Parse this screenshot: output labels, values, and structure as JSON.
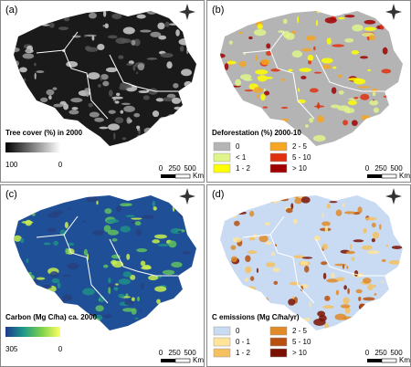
{
  "panels": [
    {
      "label": "(a)",
      "title": "Tree cover (%) in 2000",
      "base": "#1a1a1a",
      "patches": [
        "#555555",
        "#9a9a9a",
        "#d0d0d0"
      ],
      "legend": {
        "start": 100,
        "end": 0,
        "colors": [
          "#000000",
          "#ffffff"
        ]
      },
      "scale": {
        "ticks": [
          0,
          250,
          500
        ],
        "unit": "Km"
      }
    },
    {
      "label": "(b)",
      "title": "Deforestation (%) 2000-10",
      "base": "#b4b4b4",
      "patches": [
        "#ffff00",
        "#f5a623",
        "#e03010",
        "#a00000",
        "#dff58a"
      ],
      "classes": [
        {
          "label": "0",
          "color": "#b4b4b4"
        },
        {
          "label": "< 1",
          "color": "#dff58a"
        },
        {
          "label": "1 - 2",
          "color": "#ffff00"
        },
        {
          "label": "2 - 5",
          "color": "#f5a623"
        },
        {
          "label": "5 - 10",
          "color": "#e03010"
        },
        {
          "label": "> 10",
          "color": "#a00000"
        }
      ],
      "scale": {
        "ticks": [
          0,
          250,
          500
        ],
        "unit": "Km"
      }
    },
    {
      "label": "(c)",
      "title": "Carbon (Mg C/ha) ca. 2000",
      "base": "#1f4f96",
      "patches": [
        "#1f8f8a",
        "#5fc060",
        "#c8ef50",
        "#27407f"
      ],
      "legend": {
        "start": 305,
        "end": 0,
        "colors": [
          "#1d3a8c",
          "#1f9a88",
          "#7fd24a",
          "#ffff66"
        ]
      },
      "scale": {
        "ticks": [
          0,
          250,
          500
        ],
        "unit": "Km"
      }
    },
    {
      "label": "(d)",
      "title": "C emissions (Mg C/ha/yr)",
      "base": "#c9dbf2",
      "patches": [
        "#ffe49a",
        "#f5c060",
        "#e08a28",
        "#b8500f",
        "#7a1000"
      ],
      "classes": [
        {
          "label": "0",
          "color": "#c9dbf2"
        },
        {
          "label": "0 - 1",
          "color": "#ffe49a"
        },
        {
          "label": "1 - 2",
          "color": "#f5c060"
        },
        {
          "label": "2 - 5",
          "color": "#e08a28"
        },
        {
          "label": "5 - 10",
          "color": "#b8500f"
        },
        {
          "label": "> 10",
          "color": "#7a1000"
        }
      ],
      "scale": {
        "ticks": [
          0,
          250,
          500
        ],
        "unit": "Km"
      }
    }
  ]
}
